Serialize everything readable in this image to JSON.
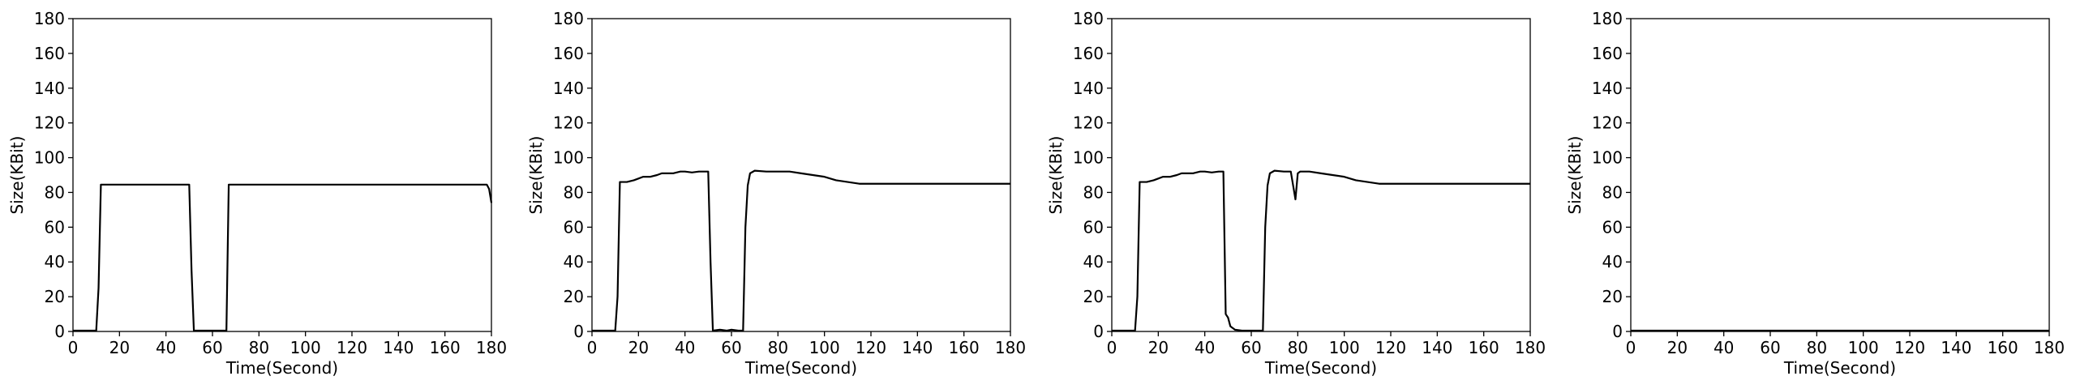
{
  "chart_data": [
    {
      "type": "line",
      "xlabel": "Time(Second)",
      "ylabel": "Size(KBit)",
      "xlim": [
        0,
        180
      ],
      "ylim": [
        0,
        180
      ],
      "xticks": [
        0,
        20,
        40,
        60,
        80,
        100,
        120,
        140,
        160,
        180
      ],
      "yticks": [
        0,
        20,
        40,
        60,
        80,
        100,
        120,
        140,
        160,
        180
      ],
      "grid": false,
      "series": [
        {
          "color": "#000000",
          "points": [
            [
              0,
              0.5
            ],
            [
              10,
              0.5
            ],
            [
              11,
              25
            ],
            [
              12,
              84.5
            ],
            [
              50,
              84.5
            ],
            [
              51,
              35
            ],
            [
              52,
              0.5
            ],
            [
              66,
              0.5
            ],
            [
              67,
              84.5
            ],
            [
              178,
              84.5
            ],
            [
              179,
              82
            ],
            [
              180,
              74
            ]
          ]
        }
      ]
    },
    {
      "type": "line",
      "xlabel": "Time(Second)",
      "ylabel": "Size(KBit)",
      "xlim": [
        0,
        180
      ],
      "ylim": [
        0,
        180
      ],
      "xticks": [
        0,
        20,
        40,
        60,
        80,
        100,
        120,
        140,
        160,
        180
      ],
      "yticks": [
        0,
        20,
        40,
        60,
        80,
        100,
        120,
        140,
        160,
        180
      ],
      "grid": false,
      "series": [
        {
          "color": "#000000",
          "points": [
            [
              0,
              0.5
            ],
            [
              10,
              0.5
            ],
            [
              11,
              20
            ],
            [
              12,
              86
            ],
            [
              15,
              86
            ],
            [
              18,
              87
            ],
            [
              20,
              88
            ],
            [
              22,
              89
            ],
            [
              25,
              89
            ],
            [
              28,
              90
            ],
            [
              30,
              91
            ],
            [
              33,
              91
            ],
            [
              35,
              91
            ],
            [
              38,
              92
            ],
            [
              40,
              92
            ],
            [
              43,
              91.5
            ],
            [
              46,
              92
            ],
            [
              49,
              92
            ],
            [
              50,
              92
            ],
            [
              51,
              40
            ],
            [
              52,
              0.5
            ],
            [
              55,
              1
            ],
            [
              58,
              0.5
            ],
            [
              60,
              1
            ],
            [
              63,
              0.5
            ],
            [
              65,
              0.5
            ],
            [
              66,
              60
            ],
            [
              67,
              84
            ],
            [
              68,
              91
            ],
            [
              70,
              92.5
            ],
            [
              75,
              92
            ],
            [
              80,
              92
            ],
            [
              85,
              92
            ],
            [
              90,
              91
            ],
            [
              95,
              90
            ],
            [
              100,
              89
            ],
            [
              105,
              87
            ],
            [
              110,
              86
            ],
            [
              115,
              85
            ],
            [
              120,
              85
            ],
            [
              130,
              85
            ],
            [
              140,
              85
            ],
            [
              150,
              85
            ],
            [
              160,
              85
            ],
            [
              170,
              85
            ],
            [
              180,
              85
            ]
          ]
        }
      ]
    },
    {
      "type": "line",
      "xlabel": "Time(Second)",
      "ylabel": "Size(KBit)",
      "xlim": [
        0,
        180
      ],
      "ylim": [
        0,
        180
      ],
      "xticks": [
        0,
        20,
        40,
        60,
        80,
        100,
        120,
        140,
        160,
        180
      ],
      "yticks": [
        0,
        20,
        40,
        60,
        80,
        100,
        120,
        140,
        160,
        180
      ],
      "grid": false,
      "series": [
        {
          "color": "#000000",
          "points": [
            [
              0,
              0.5
            ],
            [
              10,
              0.5
            ],
            [
              11,
              20
            ],
            [
              12,
              86
            ],
            [
              15,
              86
            ],
            [
              18,
              87
            ],
            [
              20,
              88
            ],
            [
              22,
              89
            ],
            [
              25,
              89
            ],
            [
              28,
              90
            ],
            [
              30,
              91
            ],
            [
              33,
              91
            ],
            [
              35,
              91
            ],
            [
              38,
              92
            ],
            [
              40,
              92
            ],
            [
              43,
              91.5
            ],
            [
              46,
              92
            ],
            [
              48,
              92
            ],
            [
              49,
              10
            ],
            [
              50,
              8
            ],
            [
              51,
              3
            ],
            [
              53,
              1
            ],
            [
              56,
              0.5
            ],
            [
              60,
              0.5
            ],
            [
              65,
              0.5
            ],
            [
              66,
              60
            ],
            [
              67,
              84
            ],
            [
              68,
              91
            ],
            [
              70,
              92.5
            ],
            [
              74,
              92
            ],
            [
              77,
              92
            ],
            [
              78,
              84
            ],
            [
              79,
              76
            ],
            [
              80,
              91
            ],
            [
              81,
              92
            ],
            [
              85,
              92
            ],
            [
              90,
              91
            ],
            [
              95,
              90
            ],
            [
              100,
              89
            ],
            [
              105,
              87
            ],
            [
              110,
              86
            ],
            [
              115,
              85
            ],
            [
              120,
              85
            ],
            [
              130,
              85
            ],
            [
              140,
              85
            ],
            [
              150,
              85
            ],
            [
              160,
              85
            ],
            [
              170,
              85
            ],
            [
              180,
              85
            ]
          ]
        }
      ]
    },
    {
      "type": "line",
      "xlabel": "Time(Second)",
      "ylabel": "Size(KBit)",
      "xlim": [
        0,
        180
      ],
      "ylim": [
        0,
        180
      ],
      "xticks": [
        0,
        20,
        40,
        60,
        80,
        100,
        120,
        140,
        160,
        180
      ],
      "yticks": [
        0,
        20,
        40,
        60,
        80,
        100,
        120,
        140,
        160,
        180
      ],
      "grid": false,
      "series": [
        {
          "color": "#000000",
          "points": [
            [
              0,
              0.5
            ],
            [
              180,
              0.5
            ]
          ]
        }
      ]
    }
  ]
}
